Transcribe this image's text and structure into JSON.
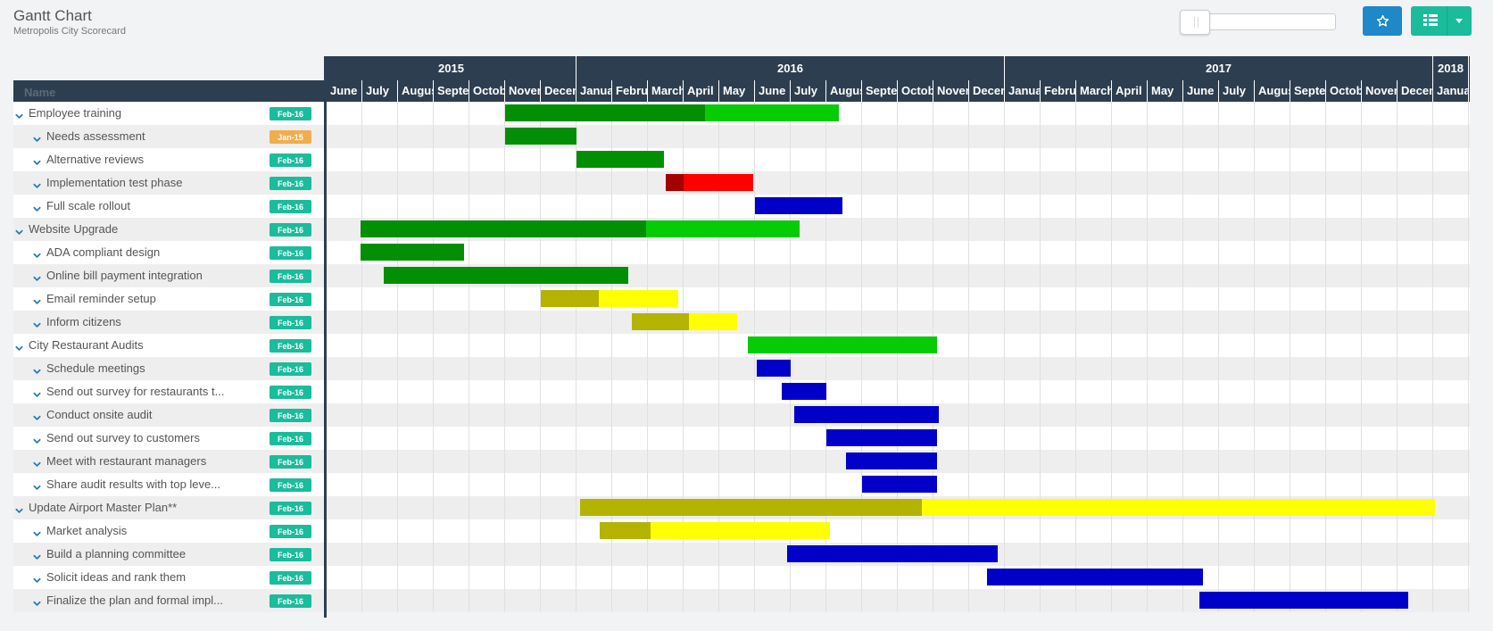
{
  "header": {
    "title": "Gantt Chart",
    "subtitle": "Metropolis City Scorecard"
  },
  "toolbar": {
    "star_icon": "star-icon",
    "grid_icon": "table-grid-icon",
    "caret_icon": "chevron-down-icon",
    "colors": {
      "star_button": "#1e88c9",
      "grid_button": "#1abc9c"
    }
  },
  "columns": {
    "name_header": "Name"
  },
  "timeline": {
    "start": "2015-06",
    "years": [
      {
        "label": "2015",
        "months": 7
      },
      {
        "label": "2016",
        "months": 12
      },
      {
        "label": "2017",
        "months": 12
      },
      {
        "label": "2018",
        "months": 1
      }
    ],
    "month_labels": [
      "June",
      "July",
      "August",
      "September",
      "October",
      "November",
      "December",
      "January",
      "February",
      "March",
      "April",
      "May",
      "June",
      "July",
      "August",
      "September",
      "October",
      "November",
      "December",
      "January",
      "February",
      "March",
      "April",
      "May",
      "June",
      "July",
      "August",
      "September",
      "October",
      "November",
      "December",
      "January"
    ]
  },
  "legend_colors": {
    "green_done": "#038f03",
    "green": "#05cc05",
    "red_done": "#a50000",
    "red": "#ff0000",
    "yellow_done": "#b3b300",
    "yellow": "#ffff00",
    "blue": "#0000c8",
    "badge_teal": "#1abc9c",
    "badge_orange": "#f0ad4e"
  },
  "tasks": [
    {
      "label": "Employee training",
      "level": 0,
      "badge": "Feb-16",
      "badge_color": "teal",
      "bar": {
        "start": 5.0,
        "end": 14.35,
        "progress": 0.6,
        "color": "green"
      }
    },
    {
      "label": "Needs assessment",
      "level": 1,
      "badge": "Jan-15",
      "badge_color": "orange",
      "bar": {
        "start": 5.0,
        "end": 7.0,
        "progress": 1.0,
        "color": "green"
      }
    },
    {
      "label": "Alternative reviews",
      "level": 1,
      "badge": "Feb-16",
      "badge_color": "teal",
      "bar": {
        "start": 7.0,
        "end": 9.45,
        "progress": 1.0,
        "color": "green"
      }
    },
    {
      "label": "Implementation test phase",
      "level": 1,
      "badge": "Feb-16",
      "badge_color": "teal",
      "bar": {
        "start": 9.5,
        "end": 11.95,
        "progress": 0.2,
        "color": "red"
      }
    },
    {
      "label": "Full scale rollout",
      "level": 1,
      "badge": "Feb-16",
      "badge_color": "teal",
      "bar": {
        "start": 12.0,
        "end": 14.45,
        "progress": 0.0,
        "color": "blue"
      }
    },
    {
      "label": "Website Upgrade",
      "level": 0,
      "badge": "Feb-16",
      "badge_color": "teal",
      "bar": {
        "start": 0.95,
        "end": 13.25,
        "progress": 0.65,
        "color": "green"
      }
    },
    {
      "label": "ADA compliant design",
      "level": 1,
      "badge": "Feb-16",
      "badge_color": "teal",
      "bar": {
        "start": 0.95,
        "end": 3.85,
        "progress": 1.0,
        "color": "green"
      }
    },
    {
      "label": "Online bill payment integration",
      "level": 1,
      "badge": "Feb-16",
      "badge_color": "teal",
      "bar": {
        "start": 1.6,
        "end": 8.45,
        "progress": 1.0,
        "color": "green"
      }
    },
    {
      "label": "Email reminder setup",
      "level": 1,
      "badge": "Feb-16",
      "badge_color": "teal",
      "bar": {
        "start": 6.0,
        "end": 9.85,
        "progress": 0.42,
        "color": "yellow"
      }
    },
    {
      "label": "Inform citizens",
      "level": 1,
      "badge": "Feb-16",
      "badge_color": "teal",
      "bar": {
        "start": 8.55,
        "end": 11.5,
        "progress": 0.54,
        "color": "yellow"
      }
    },
    {
      "label": "City Restaurant Audits",
      "level": 0,
      "badge": "Feb-16",
      "badge_color": "teal",
      "bar": {
        "start": 11.8,
        "end": 17.1,
        "progress": 0.0,
        "color": "green"
      }
    },
    {
      "label": "Schedule meetings",
      "level": 1,
      "badge": "Feb-16",
      "badge_color": "teal",
      "bar": {
        "start": 12.05,
        "end": 13.0,
        "progress": 0.0,
        "color": "blue"
      }
    },
    {
      "label": "Send out survey for restaurants t...",
      "level": 1,
      "badge": "Feb-16",
      "badge_color": "teal",
      "bar": {
        "start": 12.75,
        "end": 14.0,
        "progress": 0.0,
        "color": "blue"
      }
    },
    {
      "label": "Conduct onsite audit",
      "level": 1,
      "badge": "Feb-16",
      "badge_color": "teal",
      "bar": {
        "start": 13.1,
        "end": 17.15,
        "progress": 0.0,
        "color": "blue"
      }
    },
    {
      "label": "Send out survey to customers",
      "level": 1,
      "badge": "Feb-16",
      "badge_color": "teal",
      "bar": {
        "start": 14.0,
        "end": 17.1,
        "progress": 0.0,
        "color": "blue"
      }
    },
    {
      "label": "Meet with restaurant managers",
      "level": 1,
      "badge": "Feb-16",
      "badge_color": "teal",
      "bar": {
        "start": 14.55,
        "end": 17.1,
        "progress": 0.0,
        "color": "blue"
      }
    },
    {
      "label": "Share audit results with top leve...",
      "level": 1,
      "badge": "Feb-16",
      "badge_color": "teal",
      "bar": {
        "start": 15.0,
        "end": 17.1,
        "progress": 0.0,
        "color": "blue"
      }
    },
    {
      "label": "Update Airport Master Plan**",
      "level": 0,
      "badge": "Feb-16",
      "badge_color": "teal",
      "bar": {
        "start": 7.1,
        "end": 31.05,
        "progress": 0.4,
        "color": "yellow"
      }
    },
    {
      "label": "Market analysis",
      "level": 1,
      "badge": "Feb-16",
      "badge_color": "teal",
      "bar": {
        "start": 7.65,
        "end": 14.1,
        "progress": 0.22,
        "color": "yellow"
      }
    },
    {
      "label": "Build a planning committee",
      "level": 1,
      "badge": "Feb-16",
      "badge_color": "teal",
      "bar": {
        "start": 12.9,
        "end": 18.8,
        "progress": 0.0,
        "color": "blue"
      }
    },
    {
      "label": "Solicit ideas and rank them",
      "level": 1,
      "badge": "Feb-16",
      "badge_color": "teal",
      "bar": {
        "start": 18.5,
        "end": 24.55,
        "progress": 0.0,
        "color": "blue"
      }
    },
    {
      "label": "Finalize the plan and formal impl...",
      "level": 1,
      "badge": "Feb-16",
      "badge_color": "teal",
      "bar": {
        "start": 24.45,
        "end": 30.3,
        "progress": 0.0,
        "color": "blue"
      }
    }
  ]
}
